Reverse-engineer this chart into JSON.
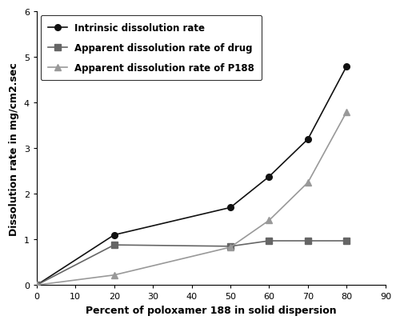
{
  "x": [
    0,
    20,
    50,
    60,
    70,
    80
  ],
  "intrinsic": [
    0.0,
    1.1,
    1.7,
    2.38,
    3.2,
    4.8
  ],
  "apparent_drug": [
    0.0,
    0.88,
    0.85,
    0.97,
    0.97,
    0.97
  ],
  "apparent_p188": [
    0.0,
    0.22,
    0.83,
    1.42,
    2.25,
    3.8
  ],
  "intrinsic_color": "#111111",
  "drug_color": "#666666",
  "p188_color": "#999999",
  "xlabel": "Percent of poloxamer 188 in solid dispersion",
  "ylabel": "Dissolution rate in mg/cm2.sec",
  "xlim": [
    0,
    90
  ],
  "ylim": [
    0,
    6
  ],
  "xticks": [
    0,
    10,
    20,
    30,
    40,
    50,
    60,
    70,
    80,
    90
  ],
  "yticks": [
    0,
    1,
    2,
    3,
    4,
    5,
    6
  ],
  "legend_intrinsic": "Intrinsic dissolution rate",
  "legend_drug": "Apparent dissolution rate of drug",
  "legend_p188": "Apparent dissolution rate of P188",
  "figsize": [
    5.0,
    4.06
  ],
  "dpi": 100
}
